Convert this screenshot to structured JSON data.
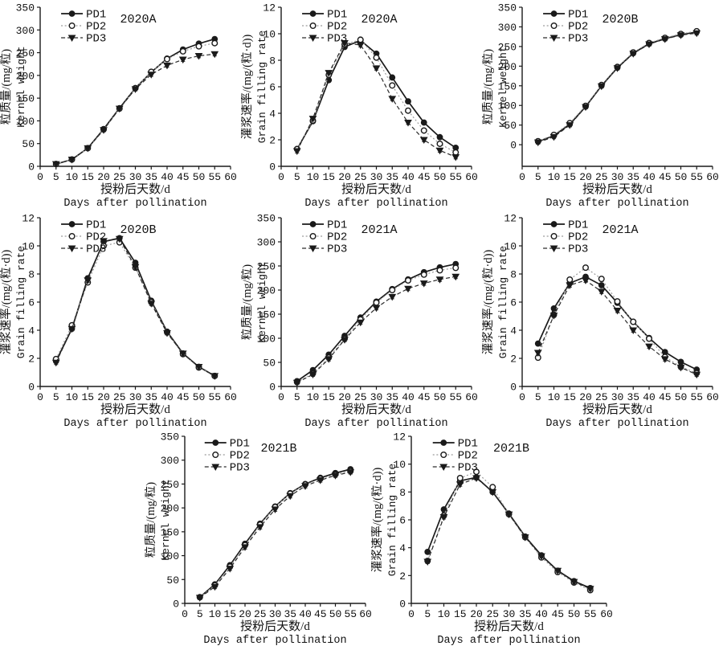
{
  "page": {
    "background": "#ffffff",
    "ink_color": "#1a1a1a"
  },
  "shared": {
    "x_axis": {
      "label_cn": "授粉后天数/d",
      "label_en": "Days after pollination",
      "range": [
        0,
        60
      ],
      "ticks": [
        0,
        5,
        10,
        15,
        20,
        25,
        30,
        35,
        40,
        45,
        50,
        55,
        60
      ]
    },
    "y_axes": {
      "kernel": {
        "label_cn": "粒质量/(mg/粒)",
        "label_en": "Kernel weight",
        "ticks": [
          0,
          50,
          100,
          150,
          200,
          250,
          300,
          350
        ]
      },
      "rate": {
        "label_cn": "灌浆速率/(mg/(粒·d))",
        "label_en": "Grain filling rate",
        "ticks": [
          0,
          2,
          4,
          6,
          8,
          10,
          12
        ]
      }
    },
    "legend": [
      {
        "label": "PD1",
        "marker": "filled-circle",
        "line": "solid",
        "line_color": "#1a1a1a",
        "marker_color": "#1a1a1a"
      },
      {
        "label": "PD2",
        "marker": "open-circle",
        "line": "dotted",
        "line_color": "#9b9b9b",
        "marker_color": "#1a1a1a"
      },
      {
        "label": "PD3",
        "marker": "filled-triangle-down",
        "line": "dashed",
        "line_color": "#2a2a2a",
        "marker_color": "#1a1a1a"
      }
    ]
  },
  "chart_data": [
    {
      "type": "line",
      "title": "2020A",
      "y_axis": "kernel",
      "ylim": [
        0,
        350
      ],
      "xlabel": "授粉后天数/d Days after pollination",
      "ylabel": "粒质量/(mg/粒) Kernel weight",
      "x": [
        5,
        10,
        15,
        20,
        25,
        30,
        35,
        40,
        45,
        50,
        55
      ],
      "series": [
        {
          "name": "PD1",
          "values": [
            5,
            15,
            40,
            82,
            128,
            172,
            207,
            237,
            257,
            270,
            280
          ]
        },
        {
          "name": "PD2",
          "values": [
            5,
            15,
            40,
            81,
            127,
            172,
            208,
            236,
            253,
            264,
            271
          ]
        },
        {
          "name": "PD3",
          "values": [
            5,
            15,
            40,
            80,
            127,
            170,
            202,
            222,
            235,
            243,
            247
          ]
        }
      ]
    },
    {
      "type": "line",
      "title": "2020A",
      "y_axis": "rate",
      "ylim": [
        0,
        12
      ],
      "xlabel": "授粉后天数/d Days after pollination",
      "ylabel": "灌浆速率/(mg/(粒·d)) Grain filling rate",
      "x": [
        5,
        10,
        15,
        20,
        25,
        30,
        35,
        40,
        45,
        50,
        55
      ],
      "series": [
        {
          "name": "PD1",
          "values": [
            1.3,
            3.4,
            6.5,
            9.0,
            9.5,
            8.5,
            6.7,
            4.9,
            3.3,
            2.2,
            1.4
          ]
        },
        {
          "name": "PD2",
          "values": [
            1.3,
            3.45,
            6.9,
            9.2,
            9.55,
            8.2,
            6.1,
            4.2,
            2.7,
            1.7,
            1.05
          ]
        },
        {
          "name": "PD3",
          "values": [
            1.15,
            3.6,
            7.05,
            9.3,
            9.15,
            7.4,
            5.1,
            3.3,
            2.0,
            1.2,
            0.7
          ]
        }
      ]
    },
    {
      "type": "line",
      "title": "2020B",
      "y_axis": "kernel",
      "ylim": [
        -55,
        350
      ],
      "xlabel": "授粉后天数/d Days after pollination",
      "ylabel": "粒质量/(mg/粒) Kernel weight",
      "x": [
        5,
        10,
        15,
        20,
        25,
        30,
        35,
        40,
        45,
        50,
        55
      ],
      "series": [
        {
          "name": "PD1",
          "values": [
            8,
            23,
            52,
            97,
            150,
            196,
            233,
            257,
            270,
            280,
            287
          ]
        },
        {
          "name": "PD2",
          "values": [
            9,
            25,
            55,
            99,
            152,
            198,
            235,
            259,
            272,
            282,
            289
          ]
        },
        {
          "name": "PD3",
          "values": [
            6,
            20,
            50,
            96,
            149,
            195,
            232,
            256,
            269,
            279,
            284
          ]
        }
      ]
    },
    {
      "type": "line",
      "title": "2020B",
      "y_axis": "rate",
      "ylim": [
        0,
        12
      ],
      "xlabel": "授粉后天数/d Days after pollination",
      "ylabel": "灌浆速率/(mg/(粒·d)) Grain filling rate",
      "x": [
        5,
        10,
        15,
        20,
        25,
        30,
        35,
        40,
        45,
        50,
        55
      ],
      "series": [
        {
          "name": "PD1",
          "values": [
            1.8,
            4.1,
            7.7,
            10.3,
            10.55,
            8.8,
            6.1,
            3.9,
            2.35,
            1.4,
            0.75
          ]
        },
        {
          "name": "PD2",
          "values": [
            1.95,
            4.35,
            7.4,
            10.0,
            10.25,
            8.45,
            6.0,
            3.85,
            2.3,
            1.35,
            0.75
          ]
        },
        {
          "name": "PD3",
          "values": [
            1.7,
            4.1,
            7.55,
            10.35,
            10.5,
            8.5,
            5.9,
            3.8,
            2.35,
            1.4,
            0.75
          ]
        }
      ]
    },
    {
      "type": "line",
      "title": "2021A",
      "y_axis": "kernel",
      "ylim": [
        0,
        350
      ],
      "xlabel": "授粉后天数/d Days after pollination",
      "ylabel": "粒质量/(mg/粒) Kernel weight",
      "x": [
        5,
        10,
        15,
        20,
        25,
        30,
        35,
        40,
        45,
        50,
        55
      ],
      "series": [
        {
          "name": "PD1",
          "values": [
            11,
            34,
            66,
            105,
            143,
            176,
            202,
            222,
            237,
            247,
            254
          ]
        },
        {
          "name": "PD2",
          "values": [
            9,
            27,
            60,
            99,
            139,
            174,
            200,
            220,
            232,
            241,
            246
          ]
        },
        {
          "name": "PD3",
          "values": [
            8,
            25,
            57,
            97,
            133,
            163,
            186,
            203,
            214,
            222,
            228
          ]
        }
      ]
    },
    {
      "type": "line",
      "title": "2021A",
      "y_axis": "rate",
      "ylim": [
        0,
        12
      ],
      "xlabel": "授粉后天数/d Days after pollination",
      "ylabel": "灌浆速率/(mg/(粒·d)) Grain filling rate",
      "x": [
        5,
        10,
        15,
        20,
        25,
        30,
        35,
        40,
        45,
        50,
        55
      ],
      "series": [
        {
          "name": "PD1",
          "values": [
            3.05,
            5.55,
            7.35,
            7.8,
            7.2,
            5.95,
            4.6,
            3.45,
            2.45,
            1.75,
            1.2
          ]
        },
        {
          "name": "PD2",
          "values": [
            2.05,
            5.1,
            7.6,
            8.45,
            7.65,
            6.05,
            4.6,
            3.4,
            2.1,
            1.4,
            0.95
          ]
        },
        {
          "name": "PD3",
          "values": [
            2.4,
            5.05,
            7.2,
            7.55,
            6.75,
            5.4,
            4.0,
            2.85,
            1.95,
            1.35,
            0.85
          ]
        }
      ]
    },
    {
      "type": "line",
      "title": "2021B",
      "y_axis": "kernel",
      "ylim": [
        0,
        350
      ],
      "xlabel": "授粉后天数/d Days after pollination",
      "ylabel": "粒质量/(mg/粒) Kernel weight",
      "x": [
        5,
        10,
        15,
        20,
        25,
        30,
        35,
        40,
        45,
        50,
        55
      ],
      "series": [
        {
          "name": "PD1",
          "values": [
            13,
            40,
            80,
            125,
            167,
            203,
            231,
            250,
            263,
            273,
            281
          ]
        },
        {
          "name": "PD2",
          "values": [
            13,
            38,
            77,
            122,
            165,
            202,
            230,
            249,
            261,
            270,
            277
          ]
        },
        {
          "name": "PD3",
          "values": [
            12,
            35,
            73,
            118,
            160,
            197,
            225,
            246,
            258,
            268,
            275
          ]
        }
      ]
    },
    {
      "type": "line",
      "title": "2021B",
      "y_axis": "rate",
      "ylim": [
        0,
        12
      ],
      "xlabel": "授粉后天数/d Days after pollination",
      "ylabel": "灌浆速率/(mg/(粒·d)) Grain filling rate",
      "x": [
        5,
        10,
        15,
        20,
        25,
        30,
        35,
        40,
        45,
        50,
        55
      ],
      "series": [
        {
          "name": "PD1",
          "values": [
            3.7,
            6.75,
            8.8,
            9.05,
            8.0,
            6.45,
            4.8,
            3.45,
            2.35,
            1.6,
            1.1
          ]
        },
        {
          "name": "PD2",
          "values": [
            3.05,
            6.3,
            9.0,
            9.45,
            8.35,
            6.4,
            4.75,
            3.3,
            2.25,
            1.5,
            0.95
          ]
        },
        {
          "name": "PD3",
          "values": [
            3.0,
            6.2,
            8.55,
            9.0,
            8.0,
            6.4,
            4.75,
            3.4,
            2.35,
            1.55,
            1.05
          ]
        }
      ]
    }
  ]
}
